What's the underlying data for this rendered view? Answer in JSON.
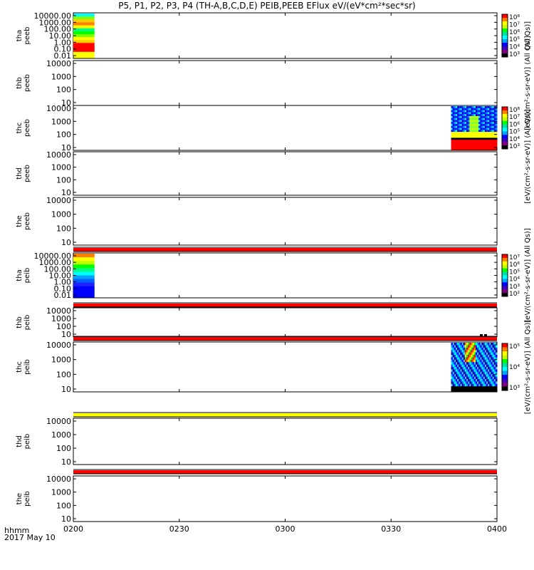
{
  "title": "P5, P1, P2, P3, P4 (TH-A,B,C,D,E) PEIB,PEEB EFlux eV/(eV*cm²*sec*sr)",
  "footer": {
    "time_label": "hhmm",
    "date_label": "2017 May 10"
  },
  "chart_data": {
    "type": "heatmap",
    "x_ticks": [
      "0200",
      "0230",
      "0300",
      "0330",
      "0400"
    ],
    "xlim": [
      "0200",
      "0400"
    ],
    "panels": [
      {
        "label1": "tha",
        "label2": "peeb",
        "yticks": [
          "10000.00",
          "1000.00",
          "100.00",
          "10.00",
          "1.00",
          "0.10",
          "0.01"
        ],
        "data_spans": [
          [
            "0200",
            "0206"
          ]
        ],
        "colorbar": {
          "ticks": [
            "10⁸",
            "10⁷",
            "10⁶",
            "10⁵",
            "10⁴",
            "10³"
          ],
          "label": "(All Qs)]"
        }
      },
      {
        "label1": "thb",
        "label2": "peeb",
        "yticks": [
          "10000",
          "1000",
          "100",
          "10"
        ],
        "data_spans": [],
        "colorbar": {
          "label": "[eV/(cm²-s-sr-eV)] (All Qs)]"
        }
      },
      {
        "label1": "thc",
        "label2": "peeb",
        "yticks": [
          "10000",
          "1000",
          "100",
          "10"
        ],
        "data_spans": [
          [
            "0347",
            "0400"
          ]
        ],
        "colorbar": {
          "ticks": [
            "10⁸",
            "10⁷",
            "10⁶",
            "10⁵",
            "10⁴",
            "10³"
          ],
          "label": "[eV/(cm²-s-sr-eV)] (All Qs)]"
        }
      },
      {
        "label1": "thd",
        "label2": "peeb",
        "yticks": [
          "10000",
          "1000",
          "100",
          "10"
        ],
        "data_spans": []
      },
      {
        "label1": "the",
        "label2": "peeb",
        "yticks": [
          "10000",
          "1000",
          "100",
          "10"
        ],
        "data_spans": []
      },
      {
        "label1": "tha",
        "label2": "peib",
        "yticks": [
          "10000.00",
          "1000.00",
          "100.00",
          "10.00",
          "1.00",
          "0.10",
          "0.01"
        ],
        "data_spans": [
          [
            "0200",
            "0206"
          ]
        ],
        "colorbar": {
          "ticks": [
            "10⁷",
            "10⁶",
            "10⁵",
            "10⁴",
            "10³",
            "10²"
          ],
          "label": "[eV/(cm²-s-sr-eV)] (All Qs)]"
        }
      },
      {
        "label1": "thb",
        "label2": "peib",
        "yticks": [
          "10000",
          "1000",
          "100",
          "10"
        ],
        "data_spans": []
      },
      {
        "label1": "thc",
        "label2": "peib",
        "yticks": [
          "10000",
          "1000",
          "100",
          "10"
        ],
        "data_spans": [
          [
            "0347",
            "0400"
          ]
        ],
        "colorbar": {
          "ticks": [
            "10⁵",
            "10⁴",
            "10³"
          ],
          "label": "[eV/(cm²-s-sr-eV)] (All Qs)]"
        }
      },
      {
        "label1": "thd",
        "label2": "peib",
        "yticks": [
          "10000",
          "1000",
          "100",
          "10"
        ],
        "data_spans": []
      },
      {
        "label1": "the",
        "label2": "peib",
        "yticks": [
          "10000",
          "1000",
          "100",
          "10"
        ],
        "data_spans": []
      }
    ],
    "flag_bars": [
      {
        "after_panel": 5,
        "color": "#ff0000"
      },
      {
        "after_panel": 6,
        "color": "#ff0000"
      },
      {
        "after_panel": 7,
        "color": "#ff0000"
      },
      {
        "after_panel": 8,
        "color": "#ffff00"
      },
      {
        "after_panel": 9,
        "color": "#ff0000"
      }
    ],
    "colors": {
      "red": "#ff0000",
      "yellow": "#ffff00",
      "green": "#00ff00",
      "cyan": "#00ffff",
      "blue": "#0000ff",
      "purple": "#800080"
    }
  }
}
